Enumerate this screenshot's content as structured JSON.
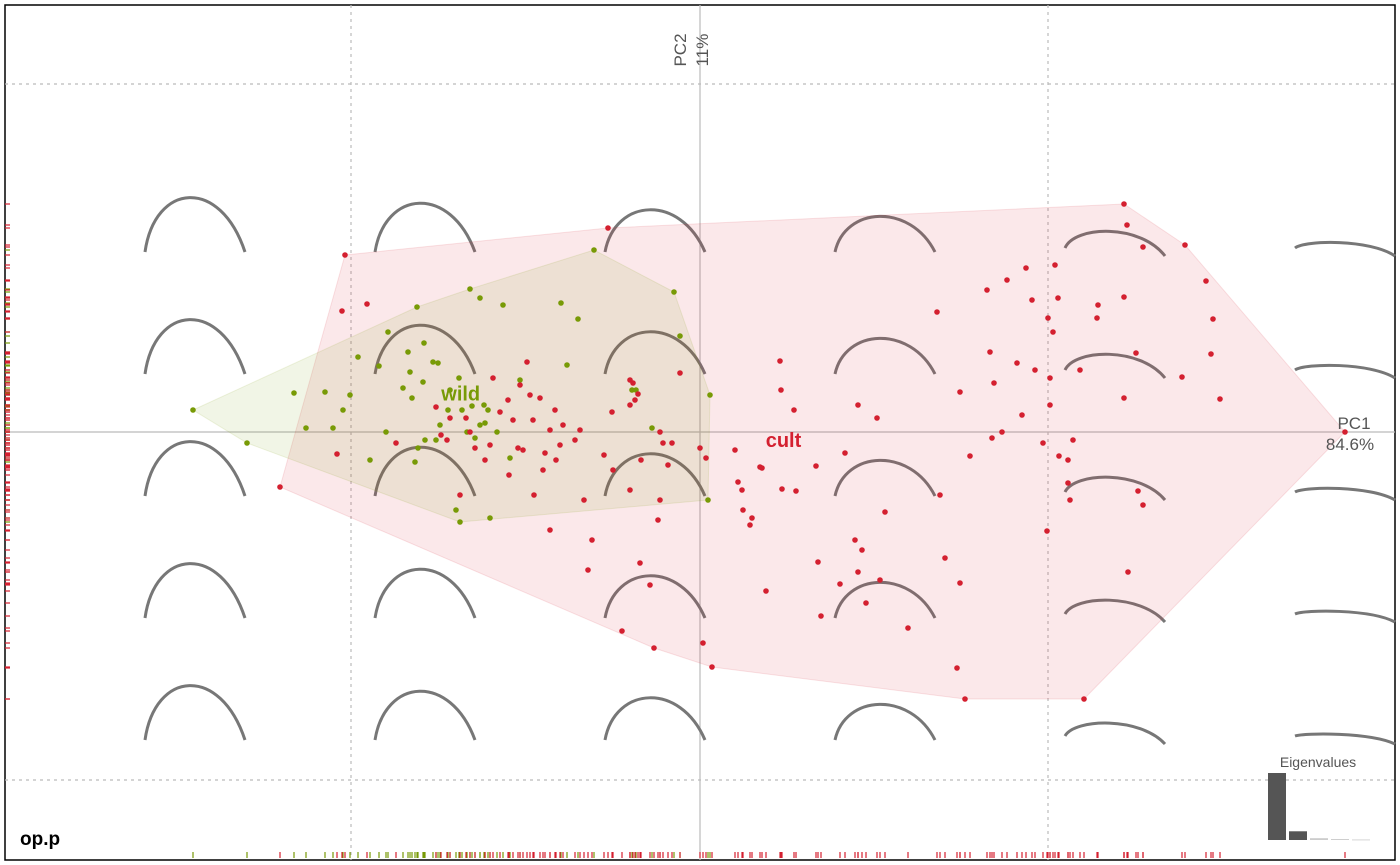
{
  "chart_data": {
    "type": "scatter",
    "title": "op.p",
    "x_label": {
      "name": "PC1",
      "variance": "84.6%"
    },
    "y_label": {
      "name": "PC2",
      "variance": "11%"
    },
    "xlim": [
      -6.95,
      6.95
    ],
    "ylim": [
      -4.28,
      4.27
    ],
    "xticks": [
      -3.49,
      0,
      3.48
    ],
    "yticks": [
      -3.48,
      0,
      3.48
    ],
    "grid": true,
    "rug": true,
    "series": [
      {
        "name": "wild",
        "color": "#789a06",
        "x": [
          -5.07,
          -4.53,
          -4.06,
          -3.94,
          -3.75,
          -3.67,
          -3.57,
          -3.5,
          -3.42,
          -3.3,
          -3.21,
          -3.14,
          -3.12,
          -2.97,
          -2.92,
          -2.9,
          -2.88,
          -2.85,
          -2.83,
          -2.82,
          -2.77,
          -2.76,
          -2.75,
          -2.67,
          -2.64,
          -2.62,
          -2.6,
          -2.52,
          -2.5,
          -2.44,
          -2.41,
          -2.4,
          -2.38,
          -2.33,
          -2.3,
          -2.28,
          -2.25,
          -2.2,
          -2.2,
          -2.16,
          -2.15,
          -2.12,
          -2.1,
          -2.03,
          -1.97,
          -1.9,
          -1.8,
          -1.39,
          -1.33,
          -1.22,
          -1.06,
          -0.68,
          -0.64,
          -0.48,
          -0.26,
          -0.2,
          0.08,
          0.1
        ],
        "values": [
          0.22,
          -0.11,
          0.39,
          0.04,
          0.4,
          0.04,
          0.22,
          0.37,
          0.75,
          -0.28,
          0.66,
          0.0,
          1.0,
          0.44,
          0.8,
          0.6,
          0.34,
          -0.3,
          1.25,
          -0.16,
          0.5,
          0.89,
          -0.08,
          0.7,
          -0.08,
          0.69,
          0.07,
          0.22,
          0.42,
          -0.78,
          0.54,
          -0.9,
          0.22,
          0.0,
          1.43,
          0.26,
          -0.06,
          1.34,
          0.07,
          0.27,
          0.09,
          0.22,
          -0.86,
          0.0,
          1.27,
          -0.26,
          0.52,
          1.29,
          0.67,
          1.13,
          1.82,
          0.42,
          0.42,
          0.04,
          1.4,
          0.96,
          -0.68,
          0.37
        ]
      },
      {
        "name": "cult",
        "color": "#d42030",
        "x": [
          -4.2,
          -3.63,
          -3.58,
          -3.55,
          -3.33,
          -3.04,
          -2.64,
          -2.59,
          -2.53,
          -2.5,
          -2.4,
          -2.34,
          -2.3,
          -2.25,
          -2.15,
          -2.1,
          -2.07,
          -2.0,
          -1.92,
          -1.91,
          -1.87,
          -1.82,
          -1.8,
          -1.77,
          -1.73,
          -1.7,
          -1.67,
          -1.66,
          -1.6,
          -1.57,
          -1.55,
          -1.5,
          -1.5,
          -1.45,
          -1.44,
          -1.4,
          -1.37,
          -1.25,
          -1.2,
          -1.16,
          -1.12,
          -1.08,
          -0.96,
          -0.92,
          -0.88,
          -0.87,
          -0.78,
          -0.7,
          -0.7,
          -0.7,
          -0.67,
          -0.65,
          -0.62,
          -0.6,
          -0.59,
          -0.5,
          -0.46,
          -0.42,
          -0.4,
          -0.4,
          -0.37,
          -0.32,
          -0.28,
          -0.2,
          0.0,
          0.03,
          0.06,
          0.12,
          0.35,
          0.38,
          0.42,
          0.43,
          0.5,
          0.52,
          0.6,
          0.62,
          0.66,
          0.8,
          0.81,
          0.82,
          0.94,
          0.96,
          1.16,
          1.18,
          1.21,
          1.4,
          1.45,
          1.55,
          1.58,
          1.58,
          1.62,
          1.66,
          1.77,
          1.8,
          1.85,
          2.08,
          2.37,
          2.4,
          2.45,
          2.57,
          2.6,
          2.6,
          2.65,
          2.7,
          2.87,
          2.9,
          2.92,
          2.94,
          3.02,
          3.07,
          3.17,
          3.22,
          3.26,
          3.32,
          3.35,
          3.43,
          3.47,
          3.48,
          3.5,
          3.5,
          3.53,
          3.55,
          3.58,
          3.59,
          3.68,
          3.68,
          3.7,
          3.73,
          3.8,
          3.84,
          3.97,
          3.98,
          4.24,
          4.24,
          4.24,
          4.27,
          4.28,
          4.36,
          4.38,
          4.43,
          4.43,
          4.82,
          4.85,
          5.06,
          5.11,
          5.13,
          5.2,
          6.45
        ],
        "values": [
          -0.55,
          -0.22,
          1.21,
          1.77,
          1.28,
          -0.11,
          0.25,
          -0.03,
          -0.08,
          0.14,
          -0.63,
          0.14,
          0.0,
          -0.16,
          -0.28,
          -0.13,
          0.54,
          0.2,
          0.32,
          -0.43,
          0.12,
          -0.16,
          0.47,
          -0.18,
          0.7,
          0.37,
          0.12,
          -0.63,
          0.34,
          -0.38,
          -0.21,
          0.02,
          -0.98,
          0.22,
          -0.28,
          -0.13,
          0.07,
          -0.08,
          0.02,
          -0.68,
          -1.38,
          -1.08,
          -0.23,
          2.04,
          0.2,
          -0.38,
          -1.99,
          0.52,
          -0.58,
          0.27,
          0.49,
          0.32,
          0.38,
          -1.31,
          -0.28,
          -1.53,
          -2.16,
          -0.88,
          0.0,
          -0.68,
          -0.11,
          -0.33,
          -0.11,
          0.59,
          -0.16,
          -2.11,
          -0.26,
          -2.35,
          -0.18,
          -0.5,
          -0.58,
          -0.78,
          -0.93,
          -0.86,
          -0.35,
          -0.36,
          -1.59,
          0.71,
          0.42,
          -0.57,
          0.22,
          -0.59,
          -0.34,
          -1.3,
          -1.84,
          -1.52,
          -0.21,
          -1.08,
          0.27,
          -1.4,
          -1.18,
          -1.71,
          0.14,
          -1.48,
          -0.8,
          -1.96,
          1.2,
          -0.63,
          -1.26,
          -2.36,
          0.4,
          -1.51,
          -2.67,
          -0.24,
          1.42,
          0.8,
          -0.06,
          0.49,
          0.0,
          1.52,
          0.69,
          0.17,
          1.64,
          1.32,
          0.62,
          -0.11,
          -0.99,
          1.14,
          0.54,
          0.27,
          1.0,
          1.67,
          1.34,
          -0.24,
          -0.28,
          -0.51,
          -0.68,
          -0.08,
          0.62,
          -2.67,
          1.14,
          1.27,
          1.35,
          0.34,
          2.28,
          2.07,
          -1.4,
          0.79,
          -0.59,
          -0.73,
          1.85,
          0.55,
          1.87,
          1.51,
          0.78,
          1.13,
          0.33,
          0.0
        ]
      }
    ],
    "eigenvalues": {
      "title": "Eigenvalues",
      "values": [
        84.6,
        11,
        2.3,
        1.2,
        0.6
      ],
      "colors": [
        "#555555",
        "#555555",
        "#cccccc",
        "#cccccc",
        "#cccccc"
      ]
    }
  }
}
